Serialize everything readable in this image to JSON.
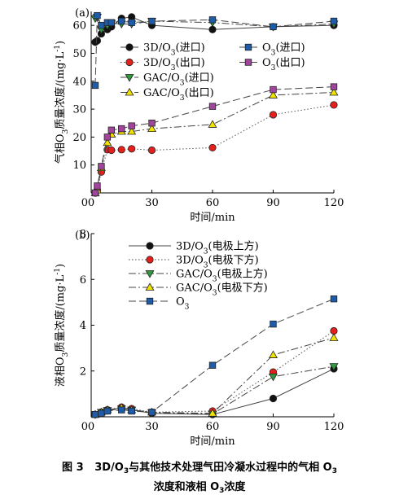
{
  "chart_data": [
    {
      "panel": "(a)",
      "type": "line",
      "ylabel": "气相O₃质量浓度/(mg·L⁻¹)",
      "xlabel": "时间/min",
      "xlim": [
        0,
        120
      ],
      "ylim": [
        0,
        65
      ],
      "xticks": [
        0,
        30,
        60,
        90,
        120
      ],
      "yticks": [
        10,
        20,
        30,
        40,
        50,
        60
      ],
      "legend_position": "upper middle, two columns",
      "series": [
        {
          "name": "3D/O₃(进口)",
          "marker": "circle",
          "fill": "#111111",
          "line": "solid",
          "x": [
            2,
            3,
            5,
            8,
            10,
            15,
            20,
            30,
            60,
            90,
            120
          ],
          "y": [
            54,
            54.5,
            57,
            58.5,
            59.5,
            62.5,
            63,
            60,
            58.5,
            59.5,
            60
          ]
        },
        {
          "name": "3D/O₃(出口)",
          "marker": "circle",
          "fill": "#e3201b",
          "line": "dotted",
          "x": [
            2,
            3,
            5,
            8,
            10,
            15,
            20,
            30,
            60,
            90,
            120
          ],
          "y": [
            0,
            1,
            7.5,
            15.5,
            15.3,
            15.5,
            15.8,
            15.3,
            16.2,
            28,
            31.5
          ]
        },
        {
          "name": "GAC/O₃(进口)",
          "marker": "triangle-down",
          "fill": "#2e9a3a",
          "line": "dash-dot",
          "x": [
            2,
            3,
            5,
            8,
            10,
            15,
            20,
            30,
            60,
            90,
            120
          ],
          "y": [
            62.5,
            63,
            58.5,
            60,
            60.8,
            60.5,
            60.5,
            61.5,
            61,
            59.5,
            60.5
          ]
        },
        {
          "name": "GAC/O₃(出口)",
          "marker": "triangle-up",
          "fill": "#f2e200",
          "line": "dash-dot",
          "x": [
            2,
            3,
            5,
            8,
            10,
            15,
            20,
            30,
            60,
            90,
            120
          ],
          "y": [
            0,
            1,
            9,
            18,
            21,
            22,
            22,
            23,
            24.5,
            35,
            36
          ]
        },
        {
          "name": "O₃(进口)",
          "marker": "square",
          "fill": "#1f5ca8",
          "line": "dashed",
          "x": [
            2,
            3,
            5,
            8,
            10,
            15,
            20,
            30,
            60,
            90,
            120
          ],
          "y": [
            38.5,
            63.5,
            60,
            61,
            61,
            61.5,
            61,
            61.5,
            62,
            59.5,
            61.5
          ]
        },
        {
          "name": "O₃(出口)",
          "marker": "square",
          "fill": "#a0459b",
          "line": "dashed",
          "x": [
            2,
            3,
            5,
            8,
            10,
            15,
            20,
            30,
            60,
            90,
            120
          ],
          "y": [
            0,
            2.5,
            9.5,
            20,
            22.5,
            23,
            24,
            25,
            31,
            37,
            38
          ]
        }
      ]
    },
    {
      "panel": "(b)",
      "type": "line",
      "ylabel": "液相O₃质量浓度/(mg·L⁻¹)",
      "xlabel": "时间/min",
      "xlim": [
        0,
        120
      ],
      "ylim": [
        0,
        8
      ],
      "xticks": [
        0,
        30,
        60,
        90,
        120
      ],
      "yticks": [
        2,
        4,
        6,
        8
      ],
      "legend_position": "top-left, one column",
      "series": [
        {
          "name": "3D/O₃(电极上方)",
          "marker": "circle",
          "fill": "#111111",
          "line": "solid",
          "x": [
            2,
            5,
            8,
            15,
            20,
            30,
            60,
            90,
            120
          ],
          "y": [
            0.1,
            0.2,
            0.3,
            0.38,
            0.3,
            0.15,
            0.1,
            0.8,
            2.1
          ]
        },
        {
          "name": "3D/O₃(电极下方)",
          "marker": "circle",
          "fill": "#e3201b",
          "line": "dotted",
          "x": [
            2,
            5,
            8,
            15,
            20,
            30,
            60,
            90,
            120
          ],
          "y": [
            0.1,
            0.2,
            0.3,
            0.42,
            0.35,
            0.2,
            0.25,
            1.95,
            3.75
          ]
        },
        {
          "name": "GAC/O₃(电极上方)",
          "marker": "triangle-down",
          "fill": "#2e9a3a",
          "line": "dash-dot",
          "x": [
            2,
            5,
            8,
            15,
            20,
            30,
            60,
            90,
            120
          ],
          "y": [
            0.1,
            0.2,
            0.28,
            0.35,
            0.3,
            0.18,
            0.12,
            1.75,
            2.2
          ]
        },
        {
          "name": "GAC/O₃(电极下方)",
          "marker": "triangle-up",
          "fill": "#f2e200",
          "line": "dash-dot",
          "x": [
            2,
            5,
            8,
            15,
            20,
            30,
            60,
            90,
            120
          ],
          "y": [
            0.1,
            0.2,
            0.3,
            0.4,
            0.3,
            0.2,
            0.15,
            2.7,
            3.45
          ]
        },
        {
          "name": "O₃",
          "marker": "square",
          "fill": "#1f5ca8",
          "line": "dashed",
          "x": [
            2,
            5,
            8,
            15,
            20,
            30,
            60,
            90,
            120
          ],
          "y": [
            0.1,
            0.15,
            0.25,
            0.3,
            0.25,
            0.2,
            2.25,
            4.05,
            5.15
          ]
        }
      ]
    }
  ],
  "caption": {
    "figure_number": "图 3",
    "line1_main": "3D/O",
    "line1_sub": "3",
    "line1_rest": "与其他技术处理气田冷凝水过程中的气相 O",
    "line1_sub2": "3",
    "line2_main": "浓度和液相 O",
    "line2_sub": "3",
    "line2_rest": "浓度"
  }
}
